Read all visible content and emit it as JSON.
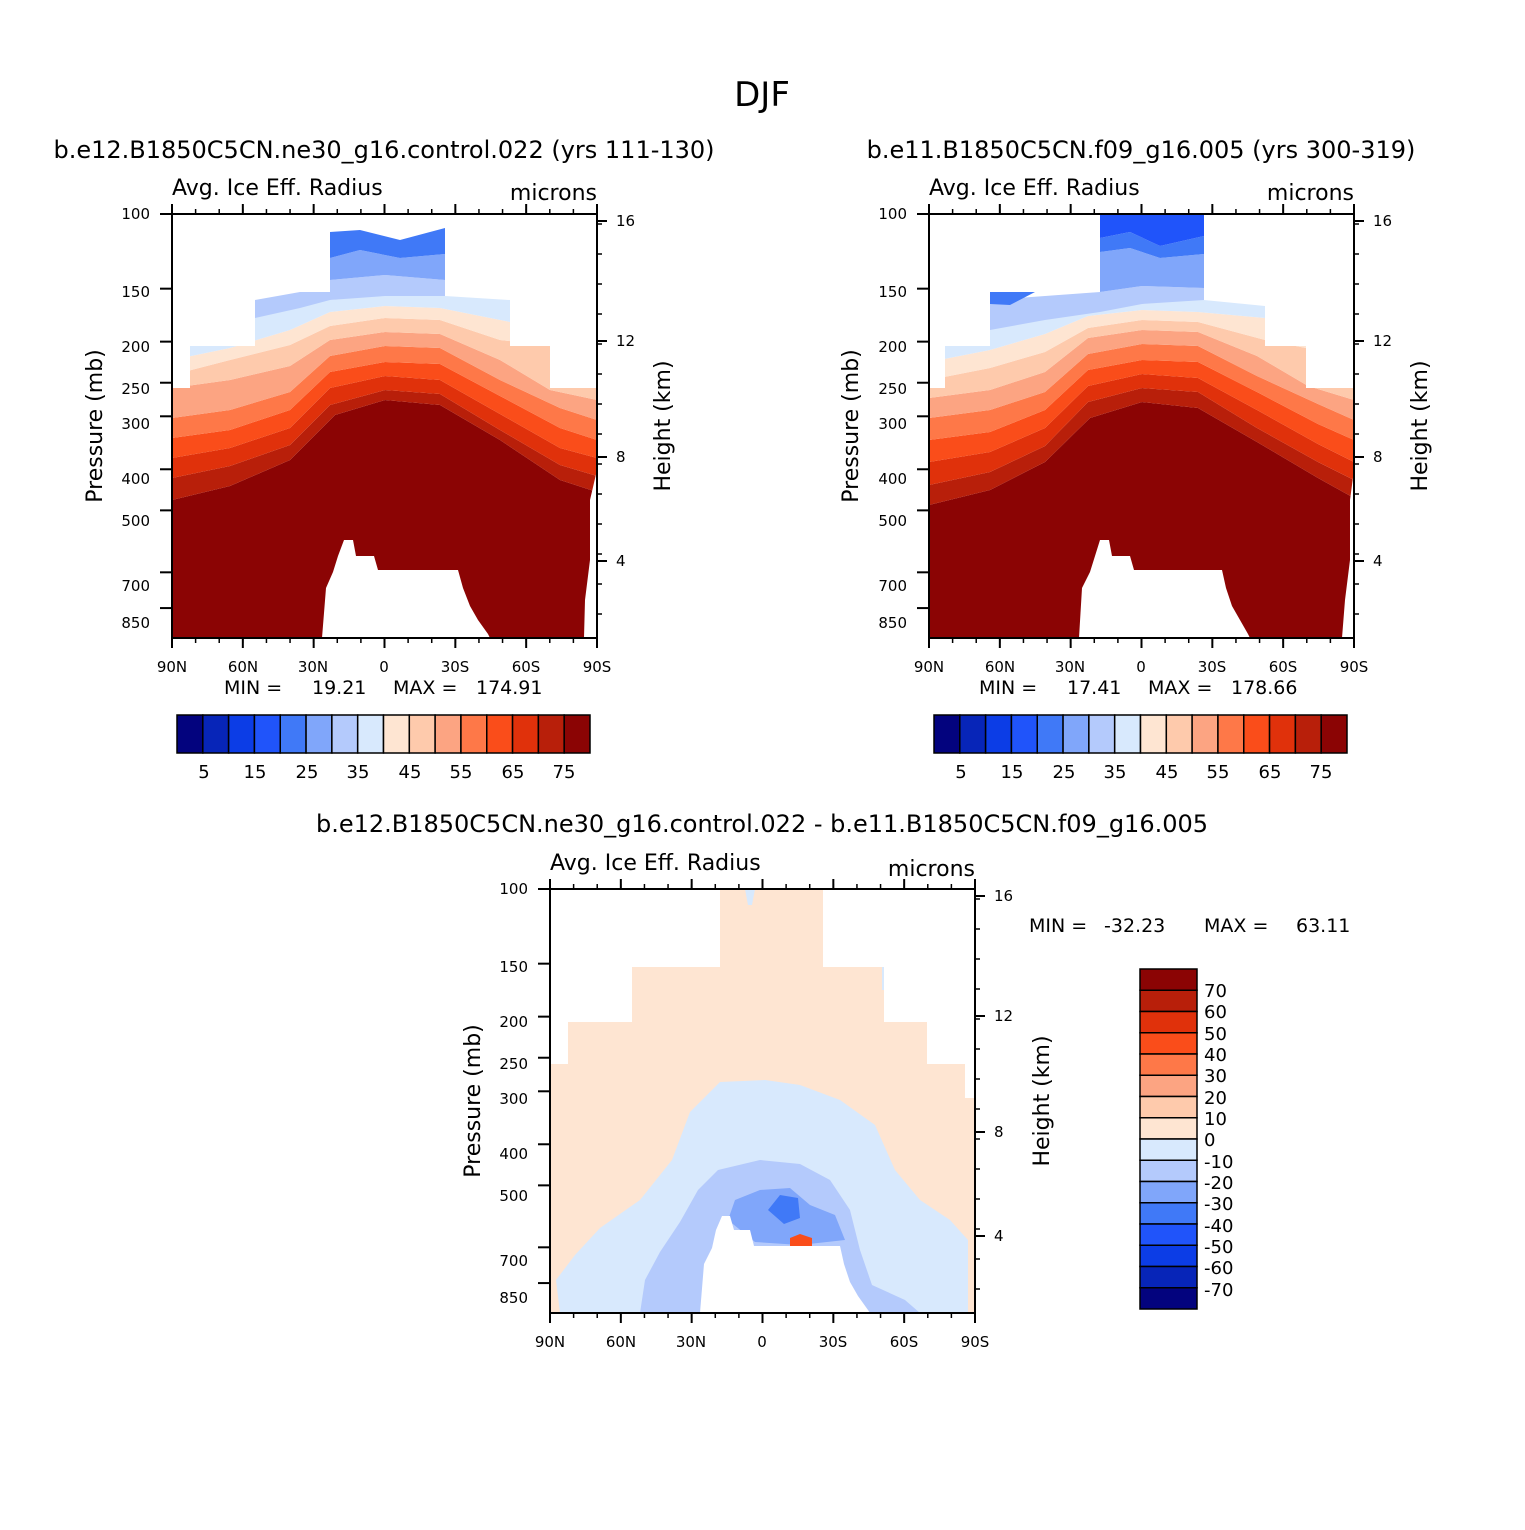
{
  "figure": {
    "super_title": "DJF"
  },
  "colors": {
    "seq_scale": [
      "#03037e",
      "#0725b8",
      "#0c3de6",
      "#2054fa",
      "#4079f7",
      "#80a6fa",
      "#b4cafc",
      "#d8e9fd",
      "#fee5d2",
      "#fecaac",
      "#fca482",
      "#fe7848",
      "#fa4d1a",
      "#e0310b",
      "#b81f0a",
      "#8b0404"
    ],
    "diff_scale": [
      "#03037e",
      "#0725b8",
      "#0c3de6",
      "#2054fa",
      "#4079f7",
      "#80a6fa",
      "#b4cafc",
      "#d8e9fd",
      "#fee5d2",
      "#fecaac",
      "#fca482",
      "#fe7848",
      "#fa4d1a",
      "#e0310b",
      "#b81f0a",
      "#8b0404"
    ]
  },
  "chart_data": [
    {
      "type": "heatmap",
      "title": "b.e12.B1850C5CN.ne30_g16.control.022 (yrs 111-130)",
      "field_label": "Avg. Ice Eff. Radius",
      "units": "microns",
      "ylabel": "Pressure (mb)",
      "ylabel_right": "Height (km)",
      "x_ticks": [
        "90N",
        "60N",
        "30N",
        "0",
        "30S",
        "60S",
        "90S"
      ],
      "y_ticks": [
        "100",
        "150",
        "200",
        "250",
        "300",
        "400",
        "500",
        "700",
        "850"
      ],
      "y_right_ticks": [
        "16",
        "12",
        "8",
        "4"
      ],
      "min_label": "MIN =",
      "min_value": "19.21",
      "max_label": "MAX =",
      "max_value": "174.91",
      "colorbar_labels": [
        "5",
        "15",
        "25",
        "35",
        "45",
        "55",
        "65",
        "75"
      ],
      "ylim": [
        1000,
        100
      ],
      "xlim": [
        90,
        -90
      ]
    },
    {
      "type": "heatmap",
      "title": "b.e11.B1850C5CN.f09_g16.005 (yrs 300-319)",
      "field_label": "Avg. Ice Eff. Radius",
      "units": "microns",
      "ylabel": "Pressure (mb)",
      "ylabel_right": "Height (km)",
      "x_ticks": [
        "90N",
        "60N",
        "30N",
        "0",
        "30S",
        "60S",
        "90S"
      ],
      "y_ticks": [
        "100",
        "150",
        "200",
        "250",
        "300",
        "400",
        "500",
        "700",
        "850"
      ],
      "y_right_ticks": [
        "16",
        "12",
        "8",
        "4"
      ],
      "min_label": "MIN =",
      "min_value": "17.41",
      "max_label": "MAX =",
      "max_value": "178.66",
      "colorbar_labels": [
        "5",
        "15",
        "25",
        "35",
        "45",
        "55",
        "65",
        "75"
      ],
      "ylim": [
        1000,
        100
      ],
      "xlim": [
        90,
        -90
      ]
    },
    {
      "type": "heatmap",
      "title": "b.e12.B1850C5CN.ne30_g16.control.022 - b.e11.B1850C5CN.f09_g16.005",
      "field_label": "Avg. Ice Eff. Radius",
      "units": "microns",
      "ylabel": "Pressure (mb)",
      "ylabel_right": "Height (km)",
      "x_ticks": [
        "90N",
        "60N",
        "30N",
        "0",
        "30S",
        "60S",
        "90S"
      ],
      "y_ticks": [
        "100",
        "150",
        "200",
        "250",
        "300",
        "400",
        "500",
        "700",
        "850"
      ],
      "y_right_ticks": [
        "16",
        "12",
        "8",
        "4"
      ],
      "min_label": "MIN =",
      "min_value": "-32.23",
      "max_label": "MAX =",
      "max_value": "63.11",
      "colorbar_labels": [
        "70",
        "60",
        "50",
        "40",
        "30",
        "20",
        "10",
        "0",
        "-10",
        "-20",
        "-30",
        "-40",
        "-50",
        "-60",
        "-70"
      ],
      "ylim": [
        1000,
        100
      ],
      "xlim": [
        90,
        -90
      ]
    }
  ]
}
